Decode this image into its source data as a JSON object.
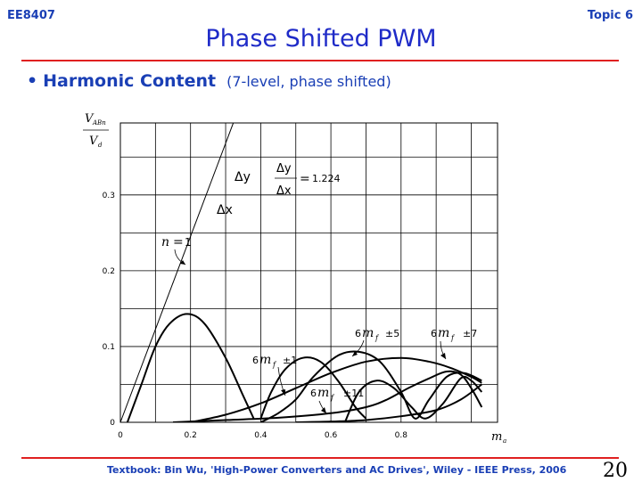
{
  "header": {
    "course": "EE8407",
    "topic": "Topic 6",
    "title": "Phase Shifted PWM"
  },
  "bullet": {
    "main": "Harmonic Content",
    "sub": "(7-level, phase shifted)"
  },
  "footer": {
    "text": "Textbook: Bin Wu, 'High-Power Converters and AC Drives', Wiley - IEEE Press, 2006",
    "page": "20"
  },
  "chart_data": {
    "type": "line",
    "ylabel_num": "V",
    "ylabel_num_sub": "ABn",
    "ylabel_den": "V",
    "ylabel_den_sub": "d",
    "xlabel": "m",
    "xlabel_sub": "a",
    "xlim": [
      0,
      1.075
    ],
    "ylim": [
      0,
      0.395
    ],
    "x_ticks": [
      "0",
      "0.2",
      "0.4",
      "0.6",
      "0.8"
    ],
    "y_ticks": [
      "0",
      "0.1",
      "0.2",
      "0.3"
    ],
    "grid": true,
    "annotations": {
      "n_label": "n",
      "n_eq": "=",
      "n_val": "1",
      "dy": "Δy",
      "dx": "Δx",
      "ratio_num": "Δy",
      "ratio_den": "Δx",
      "ratio_eq": "=",
      "ratio_val": "1.224",
      "h1_coef": "6",
      "h1_m": "m",
      "h1_sub": "f",
      "h1_pm": "±1",
      "h5_coef": "6",
      "h5_m": "m",
      "h5_sub": "f",
      "h5_pm": "±5",
      "h7_coef": "6",
      "h7_m": "m",
      "h7_sub": "f",
      "h7_pm": "±7",
      "h11_coef": "6",
      "h11_m": "m",
      "h11_sub": "f",
      "h11_pm": "±11"
    },
    "series": [
      {
        "name": "n = 1",
        "style": "thin",
        "points": [
          [
            0.0,
            0.0
          ],
          [
            0.33,
            0.405
          ]
        ]
      },
      {
        "name": "",
        "style": "bold",
        "points": [
          [
            0.02,
            0.0
          ],
          [
            0.06,
            0.05
          ],
          [
            0.1,
            0.1
          ],
          [
            0.14,
            0.13
          ],
          [
            0.19,
            0.143
          ],
          [
            0.24,
            0.13
          ],
          [
            0.3,
            0.085
          ],
          [
            0.35,
            0.035
          ],
          [
            0.38,
            0.005
          ]
        ]
      },
      {
        "name": "6mf ±1",
        "style": "bold",
        "points": [
          [
            0.4,
            0.005
          ],
          [
            0.43,
            0.04
          ],
          [
            0.47,
            0.07
          ],
          [
            0.52,
            0.085
          ],
          [
            0.57,
            0.08
          ],
          [
            0.62,
            0.055
          ],
          [
            0.67,
            0.02
          ],
          [
            0.7,
            0.005
          ]
        ]
      },
      {
        "name": "6mf ±5",
        "style": "bold",
        "points": [
          [
            0.4,
            0.0
          ],
          [
            0.45,
            0.012
          ],
          [
            0.5,
            0.03
          ],
          [
            0.55,
            0.06
          ],
          [
            0.62,
            0.088
          ],
          [
            0.68,
            0.093
          ],
          [
            0.74,
            0.08
          ],
          [
            0.8,
            0.04
          ],
          [
            0.84,
            0.005
          ],
          [
            0.88,
            0.03
          ],
          [
            0.93,
            0.06
          ],
          [
            0.98,
            0.065
          ],
          [
            1.03,
            0.055
          ]
        ]
      },
      {
        "name": "6mf ±7",
        "style": "bold",
        "points": [
          [
            0.2,
            0.0
          ],
          [
            0.3,
            0.01
          ],
          [
            0.4,
            0.025
          ],
          [
            0.5,
            0.045
          ],
          [
            0.6,
            0.065
          ],
          [
            0.7,
            0.08
          ],
          [
            0.8,
            0.085
          ],
          [
            0.88,
            0.08
          ],
          [
            0.94,
            0.072
          ],
          [
            1.0,
            0.06
          ],
          [
            1.03,
            0.052
          ]
        ]
      },
      {
        "name": "6mf ±11",
        "style": "bold",
        "points": [
          [
            0.15,
            0.0
          ],
          [
            0.3,
            0.003
          ],
          [
            0.45,
            0.006
          ],
          [
            0.6,
            0.012
          ],
          [
            0.7,
            0.02
          ],
          [
            0.76,
            0.03
          ],
          [
            0.82,
            0.045
          ],
          [
            0.88,
            0.058
          ],
          [
            0.93,
            0.067
          ],
          [
            0.97,
            0.063
          ],
          [
            1.0,
            0.045
          ],
          [
            1.03,
            0.02
          ]
        ]
      },
      {
        "name": "",
        "style": "bold",
        "points": [
          [
            0.64,
            0.0
          ],
          [
            0.68,
            0.04
          ],
          [
            0.73,
            0.055
          ],
          [
            0.78,
            0.045
          ],
          [
            0.83,
            0.02
          ],
          [
            0.87,
            0.005
          ],
          [
            0.92,
            0.025
          ],
          [
            0.97,
            0.058
          ],
          [
            1.0,
            0.055
          ],
          [
            1.03,
            0.04
          ]
        ]
      },
      {
        "name": "",
        "style": "bold",
        "points": [
          [
            0.5,
            0.0
          ],
          [
            0.6,
            0.001
          ],
          [
            0.7,
            0.003
          ],
          [
            0.8,
            0.008
          ],
          [
            0.9,
            0.016
          ],
          [
            0.97,
            0.03
          ],
          [
            1.03,
            0.05
          ]
        ]
      }
    ]
  }
}
